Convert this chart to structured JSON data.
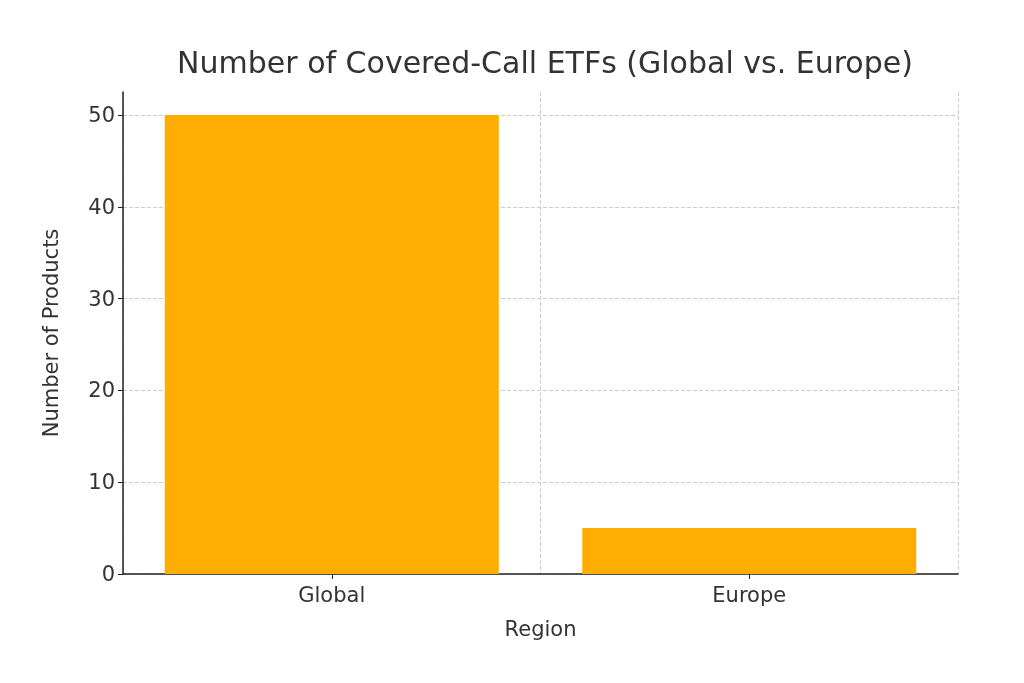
{
  "chart_data": {
    "type": "bar",
    "title": "Number of Covered-Call ETFs (Global vs. Europe)",
    "xlabel": "Region",
    "ylabel": "Number of Products",
    "categories": [
      "Global",
      "Europe"
    ],
    "values": [
      50,
      5
    ],
    "color": "#ffad00",
    "ylim": [
      0,
      52.5
    ],
    "yticks": [
      0,
      10,
      20,
      30,
      40,
      50
    ],
    "grid": true
  }
}
